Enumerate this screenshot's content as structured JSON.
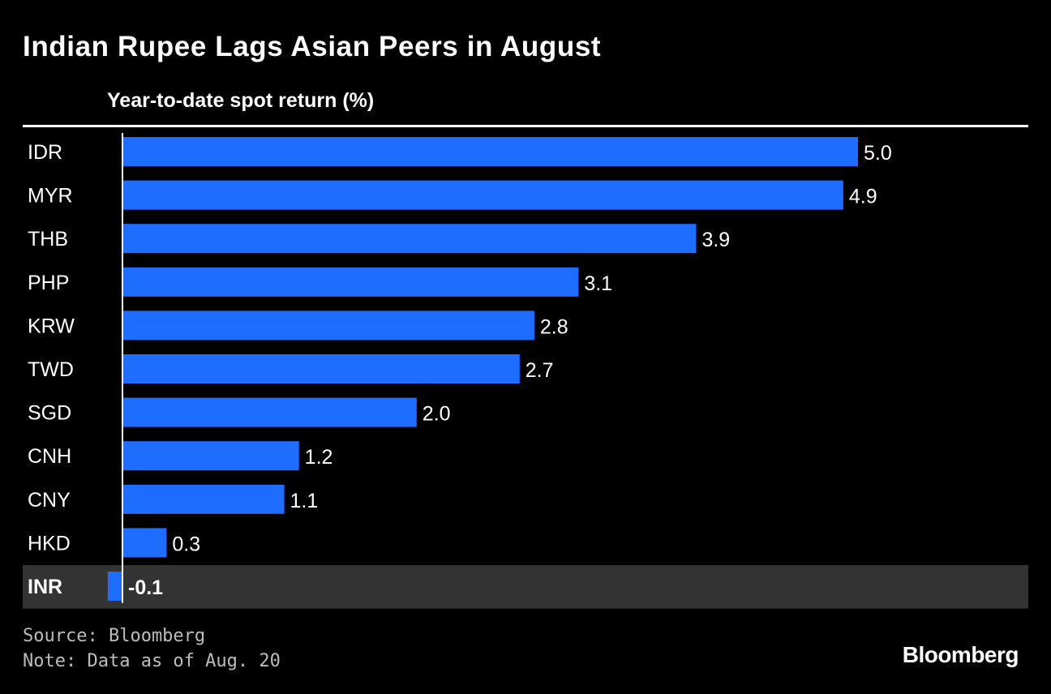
{
  "title": "Indian Rupee Lags Asian Peers in August",
  "chart_data": {
    "type": "bar",
    "orientation": "horizontal",
    "title": "Indian Rupee Lags Asian Peers in August",
    "subtitle": "Year-to-date spot return (%)",
    "xlabel": "",
    "ylabel": "",
    "categories": [
      "IDR",
      "MYR",
      "THB",
      "PHP",
      "KRW",
      "TWD",
      "SGD",
      "CNH",
      "CNY",
      "HKD",
      "INR"
    ],
    "values": [
      5.0,
      4.9,
      3.9,
      3.1,
      2.8,
      2.7,
      2.0,
      1.2,
      1.1,
      0.3,
      -0.1
    ],
    "value_labels": [
      "5.0",
      "4.9",
      "3.9",
      "3.1",
      "2.8",
      "2.7",
      "2.0",
      "1.2",
      "1.1",
      "0.3",
      "-0.1"
    ],
    "highlight": "INR",
    "xlim": [
      -0.1,
      5.0
    ],
    "grid": false
  },
  "colors": {
    "background": "#000000",
    "bar": "#1f6dff",
    "highlight_row": "#333333",
    "text": "#ffffff",
    "footnote": "#bdbdbd"
  },
  "footer": {
    "source": "Source: Bloomberg",
    "note": "Note: Data as of Aug. 20",
    "logo": "Bloomberg"
  }
}
